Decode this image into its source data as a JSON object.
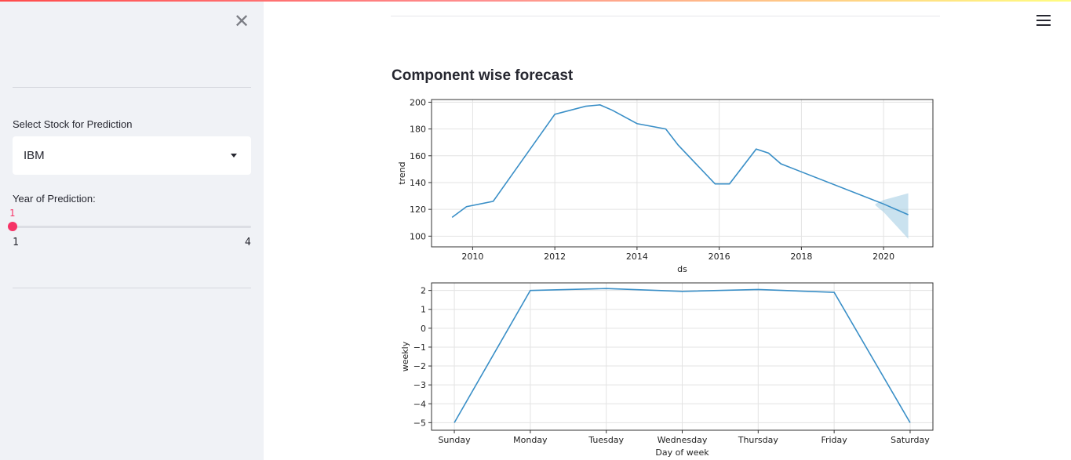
{
  "sidebar": {
    "close_icon": "close-icon",
    "stock_select": {
      "label": "Select Stock for Prediction",
      "value": "IBM"
    },
    "year_slider": {
      "label": "Year of Prediction:",
      "value": 1,
      "value_text": "1",
      "min_text": "1",
      "max_text": "4",
      "min": 1,
      "max": 4
    }
  },
  "header": {
    "menu_icon": "hamburger-menu-icon"
  },
  "main": {
    "heading": "Component wise forecast"
  },
  "chart_data": [
    {
      "type": "line",
      "xlabel": "ds",
      "ylabel": "trend",
      "xlim": [
        2009.0,
        2021.2
      ],
      "ylim": [
        92,
        202
      ],
      "xticks": [
        2010,
        2012,
        2014,
        2016,
        2018,
        2020
      ],
      "yticks": [
        100,
        120,
        140,
        160,
        180,
        200
      ],
      "grid": true,
      "series_color": "#3a8fc7",
      "band_color": "#9ecae1",
      "x": [
        2009.5,
        2009.85,
        2010.5,
        2012.0,
        2012.75,
        2013.1,
        2013.4,
        2014.0,
        2014.7,
        2015.0,
        2015.9,
        2016.25,
        2016.9,
        2017.2,
        2017.5,
        2020.0,
        2020.6
      ],
      "values": [
        114,
        122,
        126,
        191,
        197,
        198,
        194,
        184,
        180,
        168,
        139,
        139,
        165,
        162,
        154,
        124,
        116
      ],
      "uncertainty": {
        "x": [
          2019.8,
          2020.0,
          2020.6
        ],
        "lower": [
          123,
          118,
          98
        ],
        "upper": [
          124,
          127,
          132
        ]
      }
    },
    {
      "type": "line",
      "xlabel": "Day of week",
      "ylabel": "weekly",
      "ylim": [
        -5.4,
        2.4
      ],
      "yticks": [
        2,
        1,
        0,
        -1,
        -2,
        -3,
        -4,
        -5
      ],
      "ytick_labels": [
        "2",
        "1",
        "0",
        "−1",
        "−2",
        "−3",
        "−4",
        "−5"
      ],
      "grid": true,
      "series_color": "#3a8fc7",
      "categories": [
        "Sunday",
        "Monday",
        "Tuesday",
        "Wednesday",
        "Thursday",
        "Friday",
        "Saturday"
      ],
      "values": [
        -5.0,
        2.0,
        2.1,
        1.95,
        2.05,
        1.9,
        -5.0
      ]
    }
  ]
}
